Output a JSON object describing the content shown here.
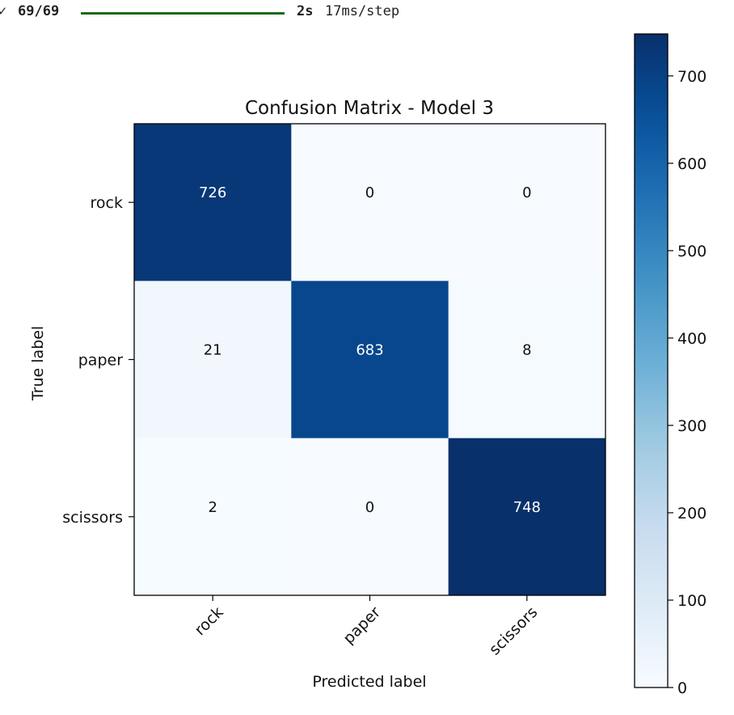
{
  "progress": {
    "mark": "✓",
    "count": "69/69",
    "fraction": 1.0,
    "time": "2s",
    "rate": "17ms/step"
  },
  "chart_data": {
    "type": "heatmap",
    "title": "Confusion Matrix - Model 3",
    "xlabel": "Predicted label",
    "ylabel": "True label",
    "x_categories": [
      "rock",
      "paper",
      "scissors"
    ],
    "y_categories": [
      "rock",
      "paper",
      "scissors"
    ],
    "values": [
      [
        726,
        0,
        0
      ],
      [
        21,
        683,
        8
      ],
      [
        2,
        0,
        748
      ]
    ],
    "colormap": "Blues",
    "colorbar": {
      "min": 0,
      "max": 748,
      "ticks": [
        0,
        100,
        200,
        300,
        400,
        500,
        600,
        700
      ]
    }
  }
}
